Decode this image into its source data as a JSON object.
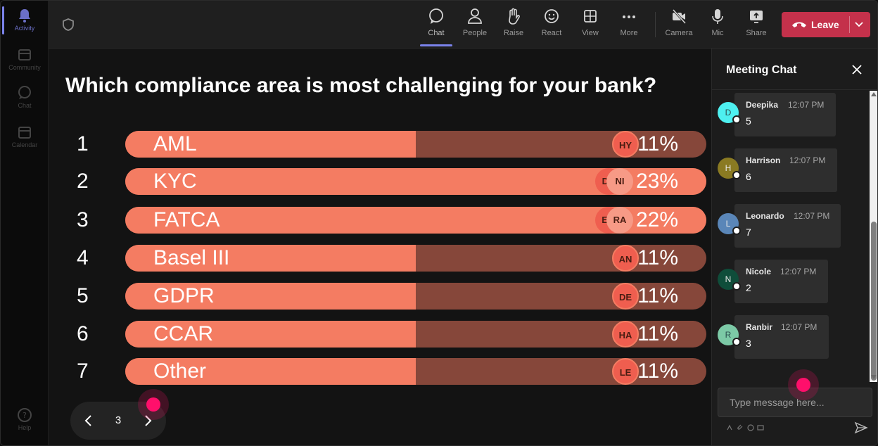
{
  "rail": {
    "items": [
      {
        "label": "Activity",
        "icon": "bell-icon"
      },
      {
        "label": "Community",
        "icon": "community-icon"
      },
      {
        "label": "Chat",
        "icon": "chat-icon"
      },
      {
        "label": "Calendar",
        "icon": "calendar-icon"
      },
      {
        "label": "Help",
        "icon": "help-icon"
      }
    ]
  },
  "toolbar": {
    "buttons": [
      {
        "label": "Chat",
        "icon": "chat-icon"
      },
      {
        "label": "People",
        "icon": "people-icon"
      },
      {
        "label": "Raise",
        "icon": "raise-hand-icon"
      },
      {
        "label": "React",
        "icon": "smile-icon"
      },
      {
        "label": "View",
        "icon": "grid-view-icon"
      },
      {
        "label": "More",
        "icon": "more-icon"
      },
      {
        "label": "Camera",
        "icon": "camera-off-icon"
      },
      {
        "label": "Mic",
        "icon": "mic-icon"
      },
      {
        "label": "Share",
        "icon": "share-screen-icon"
      }
    ],
    "leave_label": "Leave"
  },
  "poll": {
    "question": "Which compliance area is most challenging for your bank?",
    "options": [
      {
        "num": "1",
        "label": "AML",
        "percent": 11,
        "percent_label": "11%",
        "avatars": [
          "HY"
        ]
      },
      {
        "num": "2",
        "label": "KYC",
        "percent": 23,
        "percent_label": "23%",
        "avatars": [
          "DA",
          "NI"
        ]
      },
      {
        "num": "3",
        "label": "FATCA",
        "percent": 22,
        "percent_label": "22%",
        "avatars": [
          "EM",
          "RA"
        ]
      },
      {
        "num": "4",
        "label": "Basel III",
        "percent": 11,
        "percent_label": "11%",
        "avatars": [
          "AN"
        ]
      },
      {
        "num": "5",
        "label": "GDPR",
        "percent": 11,
        "percent_label": "11%",
        "avatars": [
          "DE"
        ]
      },
      {
        "num": "6",
        "label": "CCAR",
        "percent": 11,
        "percent_label": "11%",
        "avatars": [
          "HA"
        ]
      },
      {
        "num": "7",
        "label": "Other",
        "percent": 11,
        "percent_label": "11%",
        "avatars": [
          "LE"
        ]
      }
    ],
    "page": "3"
  },
  "chat": {
    "title": "Meeting Chat",
    "messages": [
      {
        "initial": "D",
        "name": "Deepika",
        "time": "12:07 PM",
        "text": "5",
        "color": "#4ef0f0"
      },
      {
        "initial": "H",
        "name": "Harrison",
        "time": "12:07 PM",
        "text": "6",
        "color": "#8a7a22"
      },
      {
        "initial": "L",
        "name": "Leonardo",
        "time": "12:07 PM",
        "text": "7",
        "color": "#5a86b8"
      },
      {
        "initial": "N",
        "name": "Nicole",
        "time": "12:07 PM",
        "text": "2",
        "color": "#0f4d3a"
      },
      {
        "initial": "R",
        "name": "Ranbir",
        "time": "12:07 PM",
        "text": "3",
        "color": "#7cc9a6"
      }
    ],
    "placeholder": "Type message here..."
  },
  "colors": {
    "bar_fill": "#f47c62",
    "bar_track": "#86473a",
    "leave": "#c4314b",
    "accent": "#7b83eb",
    "pointer": "#ff0f6b"
  }
}
